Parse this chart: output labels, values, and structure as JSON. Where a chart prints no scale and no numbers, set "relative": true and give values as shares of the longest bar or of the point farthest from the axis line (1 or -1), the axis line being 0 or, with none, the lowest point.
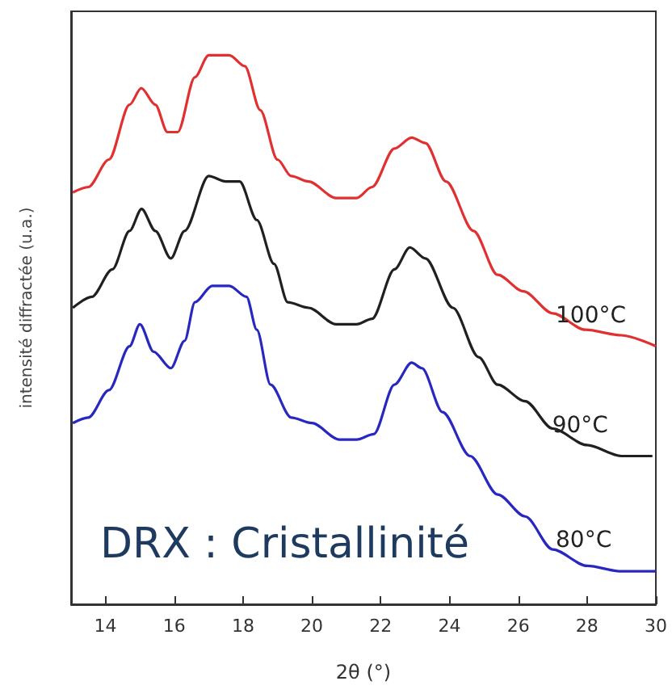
{
  "chart_data": {
    "type": "line",
    "relative": true,
    "xlabel": "2θ (°)",
    "ylabel": "intensité diffractée (u.a.)",
    "xlim": [
      13,
      30
    ],
    "xticks": [
      14,
      16,
      18,
      20,
      22,
      24,
      26,
      28,
      30
    ],
    "grid": false,
    "legend": false,
    "marker": "none",
    "line_style": "solid",
    "annotations": [
      "DRX : Cristallinité"
    ],
    "series": [
      {
        "name": "100°C",
        "color": "#e03030",
        "x": [
          13.05,
          13.5,
          14.1,
          14.7,
          15.04,
          15.45,
          15.8,
          16.1,
          16.6,
          17.0,
          17.6,
          18.05,
          18.5,
          19.0,
          19.4,
          19.9,
          20.7,
          21.3,
          21.75,
          22.4,
          22.9,
          23.3,
          23.9,
          24.7,
          25.4,
          26.15,
          27.0,
          27.95,
          29.0,
          30.0
        ],
        "values": [
          0.75,
          0.76,
          0.81,
          0.91,
          0.94,
          0.91,
          0.86,
          0.86,
          0.96,
          1.0,
          1.0,
          0.98,
          0.9,
          0.81,
          0.78,
          0.77,
          0.74,
          0.74,
          0.76,
          0.83,
          0.85,
          0.84,
          0.77,
          0.68,
          0.6,
          0.57,
          0.53,
          0.5,
          0.49,
          0.47
        ]
      },
      {
        "name": "90°C",
        "color": "#202020",
        "x": [
          13.05,
          13.6,
          14.2,
          14.7,
          15.05,
          15.45,
          15.9,
          16.3,
          17.0,
          17.5,
          17.9,
          18.4,
          18.9,
          19.3,
          19.9,
          20.7,
          21.3,
          21.75,
          22.4,
          22.85,
          23.3,
          24.1,
          24.85,
          25.4,
          26.2,
          27.0,
          28.0,
          29.0,
          29.9
        ],
        "values": [
          0.54,
          0.56,
          0.61,
          0.68,
          0.72,
          0.68,
          0.63,
          0.68,
          0.78,
          0.77,
          0.77,
          0.7,
          0.62,
          0.55,
          0.54,
          0.51,
          0.51,
          0.52,
          0.61,
          0.65,
          0.63,
          0.54,
          0.45,
          0.4,
          0.37,
          0.32,
          0.29,
          0.27,
          0.27
        ]
      },
      {
        "name": "80°C",
        "color": "#2828c0",
        "x": [
          13.05,
          13.5,
          14.1,
          14.7,
          15.0,
          15.4,
          15.9,
          16.3,
          16.6,
          17.1,
          17.6,
          18.1,
          18.4,
          18.8,
          19.4,
          20.0,
          20.8,
          21.3,
          21.8,
          22.4,
          22.9,
          23.2,
          23.8,
          24.6,
          25.4,
          26.2,
          27.0,
          28.0,
          29.0,
          30.0
        ],
        "values": [
          0.33,
          0.34,
          0.39,
          0.47,
          0.51,
          0.46,
          0.43,
          0.48,
          0.55,
          0.58,
          0.58,
          0.56,
          0.5,
          0.4,
          0.34,
          0.33,
          0.3,
          0.3,
          0.31,
          0.4,
          0.44,
          0.43,
          0.35,
          0.27,
          0.2,
          0.16,
          0.1,
          0.07,
          0.06,
          0.06
        ]
      }
    ]
  }
}
